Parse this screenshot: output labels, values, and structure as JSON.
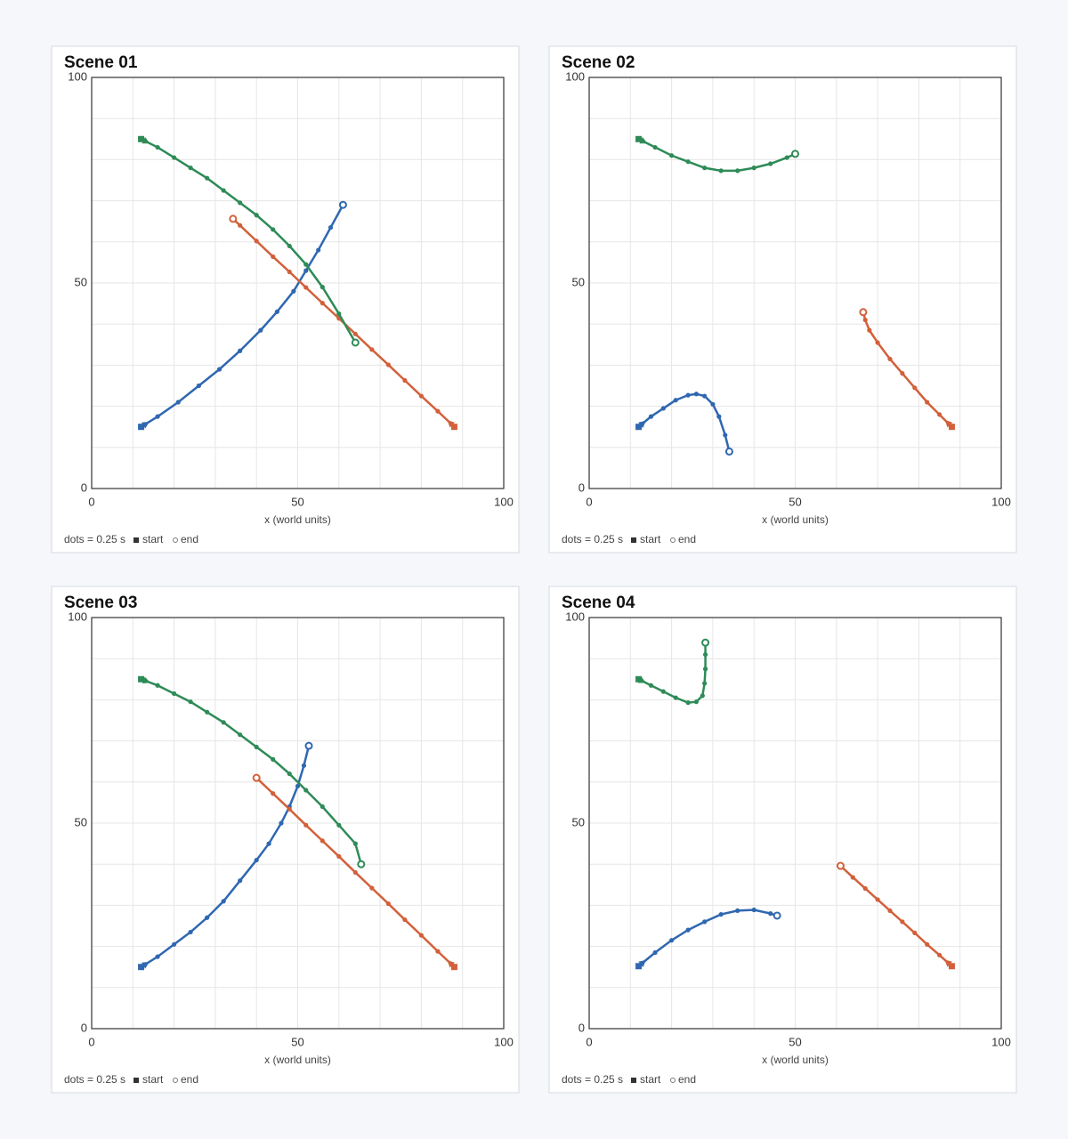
{
  "chart_data": [
    {
      "type": "line",
      "title": "Scene 01",
      "xlabel": "x (world units)",
      "xlim": [
        0,
        100
      ],
      "ylim": [
        0,
        100
      ],
      "xticks": [
        0,
        50,
        100
      ],
      "yticks": [
        0,
        50,
        100
      ],
      "minor_ticks": [
        10,
        20,
        30,
        40,
        50,
        60,
        70,
        80,
        90
      ],
      "grid": true,
      "note": "dots = 0.25 s",
      "start_label": "start",
      "end_label": "end",
      "series": [
        {
          "color": "#2f67b1",
          "x": [
            12,
            16,
            21,
            26,
            31,
            36,
            41,
            45,
            49,
            52,
            55,
            58,
            61
          ],
          "y": [
            15,
            17.5,
            21,
            25,
            29,
            33.5,
            38.5,
            43,
            48,
            53,
            58,
            63.5,
            69
          ]
        },
        {
          "color": "#d2603a",
          "x": [
            88,
            84,
            80,
            76,
            72,
            68,
            64,
            60,
            56,
            52,
            48,
            44,
            40,
            36,
            34.3
          ],
          "y": [
            15,
            18.8,
            22.5,
            26.3,
            30.1,
            33.8,
            37.6,
            41.4,
            45.1,
            48.9,
            52.7,
            56.4,
            60.2,
            64,
            65.6
          ]
        },
        {
          "color": "#2e8b57",
          "x": [
            12,
            16,
            20,
            24,
            28,
            32,
            36,
            40,
            44,
            48,
            52,
            56,
            60,
            64
          ],
          "y": [
            85,
            83,
            80.5,
            78,
            75.5,
            72.5,
            69.5,
            66.5,
            63,
            59,
            54.5,
            49,
            42.5,
            35.5
          ]
        }
      ]
    },
    {
      "type": "line",
      "title": "Scene 02",
      "xlabel": "x (world units)",
      "xlim": [
        0,
        100
      ],
      "ylim": [
        0,
        100
      ],
      "xticks": [
        0,
        50,
        100
      ],
      "yticks": [
        0,
        50,
        100
      ],
      "minor_ticks": [
        10,
        20,
        30,
        40,
        50,
        60,
        70,
        80,
        90
      ],
      "grid": true,
      "note": "dots = 0.25 s",
      "start_label": "start",
      "end_label": "end",
      "series": [
        {
          "color": "#2f67b1",
          "x": [
            12,
            15,
            18,
            21,
            24,
            26,
            28,
            30,
            31.5,
            33,
            34
          ],
          "y": [
            15,
            17.5,
            19.5,
            21.5,
            22.7,
            23,
            22.5,
            20.5,
            17.5,
            13,
            9
          ]
        },
        {
          "color": "#d2603a",
          "x": [
            88,
            85,
            82,
            79,
            76,
            73,
            70,
            68,
            67,
            66.5
          ],
          "y": [
            15,
            18,
            21,
            24.5,
            28,
            31.5,
            35.5,
            38.5,
            41,
            42.9
          ]
        },
        {
          "color": "#2e8b57",
          "x": [
            12,
            16,
            20,
            24,
            28,
            32,
            36,
            40,
            44,
            48,
            50
          ],
          "y": [
            85,
            83,
            81,
            79.5,
            78,
            77.3,
            77.3,
            78,
            79,
            80.5,
            81.4
          ]
        }
      ]
    },
    {
      "type": "line",
      "title": "Scene 03",
      "xlabel": "x (world units)",
      "xlim": [
        0,
        100
      ],
      "ylim": [
        0,
        100
      ],
      "xticks": [
        0,
        50,
        100
      ],
      "yticks": [
        0,
        50,
        100
      ],
      "minor_ticks": [
        10,
        20,
        30,
        40,
        50,
        60,
        70,
        80,
        90
      ],
      "grid": true,
      "note": "dots = 0.25 s",
      "start_label": "start",
      "end_label": "end",
      "series": [
        {
          "color": "#2f67b1",
          "x": [
            12,
            16,
            20,
            24,
            28,
            32,
            36,
            40,
            43,
            46,
            48,
            50,
            51.5,
            52.7
          ],
          "y": [
            15,
            17.5,
            20.5,
            23.5,
            27,
            31,
            36,
            41,
            45,
            50,
            54,
            59,
            64,
            68.8
          ]
        },
        {
          "color": "#d2603a",
          "x": [
            88,
            84,
            80,
            76,
            72,
            68,
            64,
            60,
            56,
            52,
            48,
            44,
            40
          ],
          "y": [
            15,
            18.8,
            22.7,
            26.5,
            30.4,
            34.2,
            38,
            41.9,
            45.7,
            49.5,
            53.4,
            57.2,
            61
          ]
        },
        {
          "color": "#2e8b57",
          "x": [
            12,
            16,
            20,
            24,
            28,
            32,
            36,
            40,
            44,
            48,
            52,
            56,
            60,
            64,
            65.4
          ],
          "y": [
            85,
            83.5,
            81.5,
            79.5,
            77,
            74.5,
            71.5,
            68.5,
            65.5,
            62,
            58,
            54,
            49.5,
            45,
            40
          ]
        }
      ]
    },
    {
      "type": "line",
      "title": "Scene 04",
      "xlabel": "x (world units)",
      "xlim": [
        0,
        100
      ],
      "ylim": [
        0,
        100
      ],
      "xticks": [
        0,
        50,
        100
      ],
      "yticks": [
        0,
        50,
        100
      ],
      "minor_ticks": [
        10,
        20,
        30,
        40,
        50,
        60,
        70,
        80,
        90
      ],
      "grid": true,
      "note": "dots = 0.25 s",
      "start_label": "start",
      "end_label": "end",
      "series": [
        {
          "color": "#2f67b1",
          "x": [
            12,
            16,
            20,
            24,
            28,
            32,
            36,
            40,
            44,
            45.6
          ],
          "y": [
            15.2,
            18.5,
            21.5,
            24,
            26,
            27.8,
            28.7,
            28.9,
            28,
            27.5
          ]
        },
        {
          "color": "#d2603a",
          "x": [
            88,
            85,
            82,
            79,
            76,
            73,
            70,
            67,
            64,
            61
          ],
          "y": [
            15.2,
            17.9,
            20.5,
            23.3,
            26,
            28.7,
            31.4,
            34.1,
            36.8,
            39.6
          ]
        },
        {
          "color": "#2e8b57",
          "x": [
            12,
            15,
            18,
            21,
            24,
            26,
            27.5,
            28,
            28.2,
            28.2,
            28.2
          ],
          "y": [
            85,
            83.5,
            82,
            80.5,
            79.3,
            79.5,
            81,
            84,
            87.5,
            91,
            93.9
          ]
        }
      ]
    }
  ]
}
